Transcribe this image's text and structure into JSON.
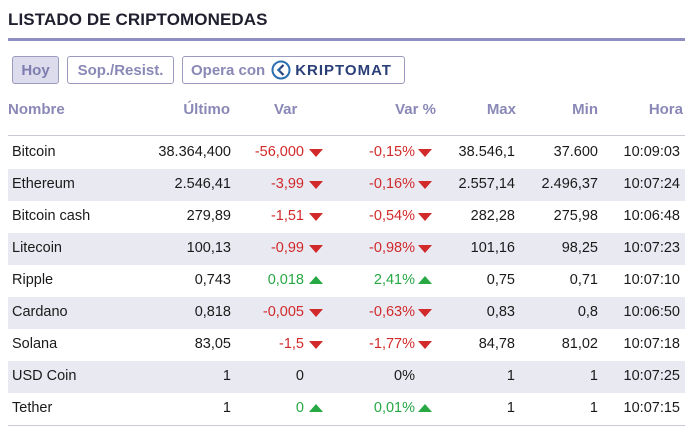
{
  "title": "LISTADO DE CRIPTOMONEDAS",
  "buttons": {
    "hoy": "Hoy",
    "sop": "Sop./Resist.",
    "opera": "Opera con",
    "brand": "KRIPTOMAT"
  },
  "headers": {
    "nombre": "Nombre",
    "ultimo": "Último",
    "var": "Var",
    "var_pct": "Var %",
    "max": "Max",
    "min": "Min",
    "hora": "Hora"
  },
  "colors": {
    "accent": "#8f8ec3",
    "negative": "#d12a2a",
    "positive": "#27a845",
    "row_alt": "#e9e9f2"
  },
  "rows": [
    {
      "name": "Bitcoin",
      "ultimo": "38.364,400",
      "var": "-56,000",
      "var_pct": "-0,15%",
      "max": "38.546,1",
      "min": "37.600",
      "hora": "10:09:03",
      "trend": "down"
    },
    {
      "name": "Ethereum",
      "ultimo": "2.546,41",
      "var": "-3,99",
      "var_pct": "-0,16%",
      "max": "2.557,14",
      "min": "2.496,37",
      "hora": "10:07:24",
      "trend": "down"
    },
    {
      "name": "Bitcoin cash",
      "ultimo": "279,89",
      "var": "-1,51",
      "var_pct": "-0,54%",
      "max": "282,28",
      "min": "275,98",
      "hora": "10:06:48",
      "trend": "down"
    },
    {
      "name": "Litecoin",
      "ultimo": "100,13",
      "var": "-0,99",
      "var_pct": "-0,98%",
      "max": "101,16",
      "min": "98,25",
      "hora": "10:07:23",
      "trend": "down"
    },
    {
      "name": "Ripple",
      "ultimo": "0,743",
      "var": "0,018",
      "var_pct": "2,41%",
      "max": "0,75",
      "min": "0,71",
      "hora": "10:07:10",
      "trend": "up"
    },
    {
      "name": "Cardano",
      "ultimo": "0,818",
      "var": "-0,005",
      "var_pct": "-0,63%",
      "max": "0,83",
      "min": "0,8",
      "hora": "10:06:50",
      "trend": "down"
    },
    {
      "name": "Solana",
      "ultimo": "83,05",
      "var": "-1,5",
      "var_pct": "-1,77%",
      "max": "84,78",
      "min": "81,02",
      "hora": "10:07:18",
      "trend": "down"
    },
    {
      "name": "USD Coin",
      "ultimo": "1",
      "var": "0",
      "var_pct": "0%",
      "max": "1",
      "min": "1",
      "hora": "10:07:25",
      "trend": "flat"
    },
    {
      "name": "Tether",
      "ultimo": "1",
      "var": "0",
      "var_pct": "0,01%",
      "max": "1",
      "min": "1",
      "hora": "10:07:15",
      "trend": "up"
    }
  ]
}
